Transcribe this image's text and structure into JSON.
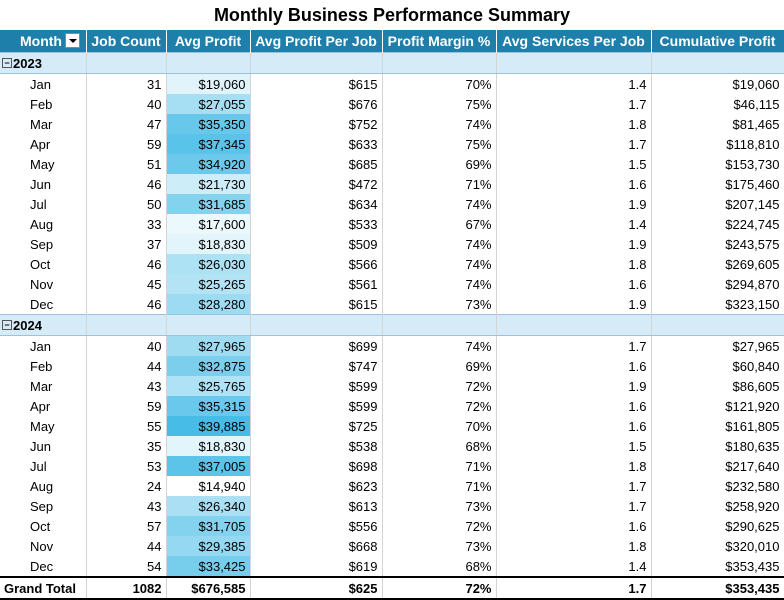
{
  "title": "Monthly Business Performance Summary",
  "headers": [
    "Month",
    "Job Count",
    "Avg Profit",
    "Avg Profit Per Job",
    "Profit Margin %",
    "Avg Services Per Job",
    "Cumulative Profit"
  ],
  "icons": {
    "filter_dropdown": "dropdown-arrow-icon",
    "collapse": "collapse-minus-icon"
  },
  "colors": {
    "header_bg": "#1f7fab",
    "year_row_bg": "#d5ebf7",
    "databar_low": "#ffffff",
    "databar_high": "#47bce6"
  },
  "groups": [
    {
      "year": "2023",
      "rows": [
        {
          "month": "Jan",
          "job_count": "31",
          "avg_profit": "$19,060",
          "avg_profit_per_job": "$615",
          "profit_margin": "70%",
          "avg_services": "1.4",
          "cumulative": "$19,060"
        },
        {
          "month": "Feb",
          "job_count": "40",
          "avg_profit": "$27,055",
          "avg_profit_per_job": "$676",
          "profit_margin": "75%",
          "avg_services": "1.7",
          "cumulative": "$46,115"
        },
        {
          "month": "Mar",
          "job_count": "47",
          "avg_profit": "$35,350",
          "avg_profit_per_job": "$752",
          "profit_margin": "74%",
          "avg_services": "1.8",
          "cumulative": "$81,465"
        },
        {
          "month": "Apr",
          "job_count": "59",
          "avg_profit": "$37,345",
          "avg_profit_per_job": "$633",
          "profit_margin": "75%",
          "avg_services": "1.7",
          "cumulative": "$118,810"
        },
        {
          "month": "May",
          "job_count": "51",
          "avg_profit": "$34,920",
          "avg_profit_per_job": "$685",
          "profit_margin": "69%",
          "avg_services": "1.5",
          "cumulative": "$153,730"
        },
        {
          "month": "Jun",
          "job_count": "46",
          "avg_profit": "$21,730",
          "avg_profit_per_job": "$472",
          "profit_margin": "71%",
          "avg_services": "1.6",
          "cumulative": "$175,460"
        },
        {
          "month": "Jul",
          "job_count": "50",
          "avg_profit": "$31,685",
          "avg_profit_per_job": "$634",
          "profit_margin": "74%",
          "avg_services": "1.9",
          "cumulative": "$207,145"
        },
        {
          "month": "Aug",
          "job_count": "33",
          "avg_profit": "$17,600",
          "avg_profit_per_job": "$533",
          "profit_margin": "67%",
          "avg_services": "1.4",
          "cumulative": "$224,745"
        },
        {
          "month": "Sep",
          "job_count": "37",
          "avg_profit": "$18,830",
          "avg_profit_per_job": "$509",
          "profit_margin": "74%",
          "avg_services": "1.9",
          "cumulative": "$243,575"
        },
        {
          "month": "Oct",
          "job_count": "46",
          "avg_profit": "$26,030",
          "avg_profit_per_job": "$566",
          "profit_margin": "74%",
          "avg_services": "1.8",
          "cumulative": "$269,605"
        },
        {
          "month": "Nov",
          "job_count": "45",
          "avg_profit": "$25,265",
          "avg_profit_per_job": "$561",
          "profit_margin": "74%",
          "avg_services": "1.6",
          "cumulative": "$294,870"
        },
        {
          "month": "Dec",
          "job_count": "46",
          "avg_profit": "$28,280",
          "avg_profit_per_job": "$615",
          "profit_margin": "73%",
          "avg_services": "1.9",
          "cumulative": "$323,150"
        }
      ]
    },
    {
      "year": "2024",
      "rows": [
        {
          "month": "Jan",
          "job_count": "40",
          "avg_profit": "$27,965",
          "avg_profit_per_job": "$699",
          "profit_margin": "74%",
          "avg_services": "1.7",
          "cumulative": "$27,965"
        },
        {
          "month": "Feb",
          "job_count": "44",
          "avg_profit": "$32,875",
          "avg_profit_per_job": "$747",
          "profit_margin": "69%",
          "avg_services": "1.6",
          "cumulative": "$60,840"
        },
        {
          "month": "Mar",
          "job_count": "43",
          "avg_profit": "$25,765",
          "avg_profit_per_job": "$599",
          "profit_margin": "72%",
          "avg_services": "1.9",
          "cumulative": "$86,605"
        },
        {
          "month": "Apr",
          "job_count": "59",
          "avg_profit": "$35,315",
          "avg_profit_per_job": "$599",
          "profit_margin": "72%",
          "avg_services": "1.6",
          "cumulative": "$121,920"
        },
        {
          "month": "May",
          "job_count": "55",
          "avg_profit": "$39,885",
          "avg_profit_per_job": "$725",
          "profit_margin": "70%",
          "avg_services": "1.6",
          "cumulative": "$161,805"
        },
        {
          "month": "Jun",
          "job_count": "35",
          "avg_profit": "$18,830",
          "avg_profit_per_job": "$538",
          "profit_margin": "68%",
          "avg_services": "1.5",
          "cumulative": "$180,635"
        },
        {
          "month": "Jul",
          "job_count": "53",
          "avg_profit": "$37,005",
          "avg_profit_per_job": "$698",
          "profit_margin": "71%",
          "avg_services": "1.8",
          "cumulative": "$217,640"
        },
        {
          "month": "Aug",
          "job_count": "24",
          "avg_profit": "$14,940",
          "avg_profit_per_job": "$623",
          "profit_margin": "71%",
          "avg_services": "1.7",
          "cumulative": "$232,580"
        },
        {
          "month": "Sep",
          "job_count": "43",
          "avg_profit": "$26,340",
          "avg_profit_per_job": "$613",
          "profit_margin": "73%",
          "avg_services": "1.7",
          "cumulative": "$258,920"
        },
        {
          "month": "Oct",
          "job_count": "57",
          "avg_profit": "$31,705",
          "avg_profit_per_job": "$556",
          "profit_margin": "72%",
          "avg_services": "1.6",
          "cumulative": "$290,625"
        },
        {
          "month": "Nov",
          "job_count": "44",
          "avg_profit": "$29,385",
          "avg_profit_per_job": "$668",
          "profit_margin": "73%",
          "avg_services": "1.8",
          "cumulative": "$320,010"
        },
        {
          "month": "Dec",
          "job_count": "54",
          "avg_profit": "$33,425",
          "avg_profit_per_job": "$619",
          "profit_margin": "68%",
          "avg_services": "1.4",
          "cumulative": "$353,435"
        }
      ]
    }
  ],
  "grand_total": {
    "label": "Grand Total",
    "job_count": "1082",
    "avg_profit": "$676,585",
    "avg_profit_per_job": "$625",
    "profit_margin": "72%",
    "avg_services": "1.7",
    "cumulative": "$353,435"
  }
}
